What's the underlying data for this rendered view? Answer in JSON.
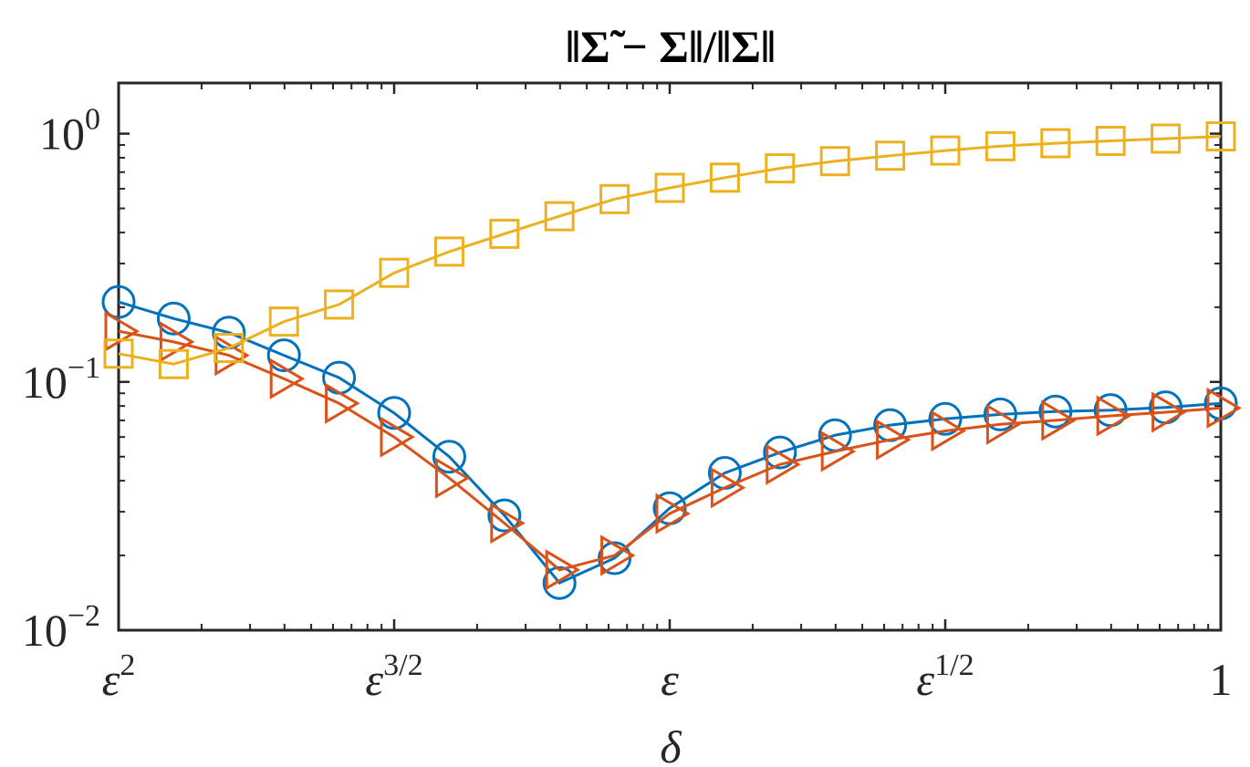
{
  "chart_data": {
    "type": "line",
    "title": "‖Σ̃ − Σ‖/‖Σ‖",
    "xlabel": "δ",
    "ylabel": "",
    "yscale": "log",
    "ylim": [
      0.01,
      1.6
    ],
    "x_ticks": [
      {
        "pos": 0,
        "base": "ε",
        "exp": "2"
      },
      {
        "pos": 1,
        "base": "ε",
        "exp": "3/2"
      },
      {
        "pos": 2,
        "base": "ε",
        "exp": ""
      },
      {
        "pos": 3,
        "base": "ε",
        "exp": "1/2"
      },
      {
        "pos": 4,
        "base": "1",
        "exp": ""
      }
    ],
    "y_ticks": [
      {
        "value": 1,
        "base": "10",
        "exp": "0"
      },
      {
        "value": 0.1,
        "base": "10",
        "exp": "−1"
      },
      {
        "value": 0.01,
        "base": "10",
        "exp": "−2"
      }
    ],
    "grid": false,
    "legend": "none",
    "x": [
      0,
      0.2,
      0.4,
      0.6,
      0.8,
      1.0,
      1.2,
      1.4,
      1.6,
      1.8,
      2.0,
      2.2,
      2.4,
      2.6,
      2.8,
      3.0,
      3.2,
      3.4,
      3.6,
      3.8,
      4.0
    ],
    "series": [
      {
        "color": "#0072BD",
        "marker": "circle",
        "values": [
          0.21,
          0.18,
          0.158,
          0.128,
          0.104,
          0.075,
          0.05,
          0.029,
          0.0155,
          0.0195,
          0.031,
          0.043,
          0.052,
          0.061,
          0.067,
          0.071,
          0.074,
          0.076,
          0.077,
          0.079,
          0.082
        ]
      },
      {
        "color": "#D95319",
        "marker": "triangle-right",
        "values": [
          0.16,
          0.145,
          0.128,
          0.103,
          0.082,
          0.06,
          0.041,
          0.027,
          0.0175,
          0.02,
          0.0295,
          0.0375,
          0.0465,
          0.0525,
          0.0585,
          0.0635,
          0.0675,
          0.07,
          0.073,
          0.0755,
          0.0785
        ]
      },
      {
        "color": "#EDB120",
        "marker": "square",
        "values": [
          0.13,
          0.118,
          0.137,
          0.175,
          0.205,
          0.275,
          0.335,
          0.395,
          0.465,
          0.545,
          0.605,
          0.665,
          0.725,
          0.775,
          0.815,
          0.855,
          0.89,
          0.915,
          0.935,
          0.955,
          0.975
        ]
      }
    ]
  }
}
